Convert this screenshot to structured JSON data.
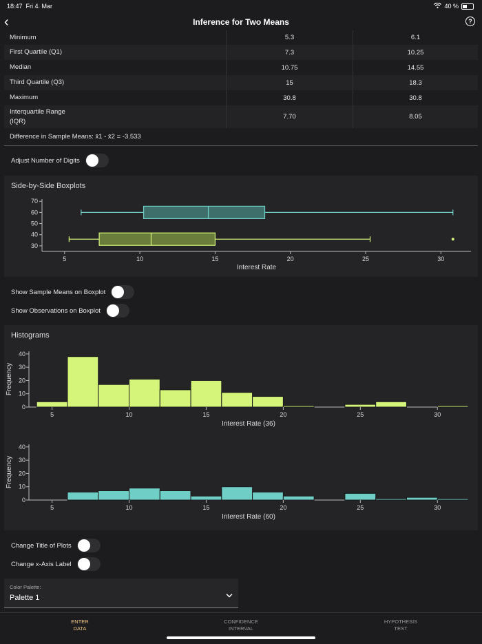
{
  "status": {
    "time": "18:47",
    "date": "Fri 4. Mar",
    "battery": "40 %",
    "battery_level": 0.4
  },
  "nav": {
    "title": "Inference for Two Means"
  },
  "stats": {
    "rows": [
      {
        "label": "Minimum",
        "v1": "5.3",
        "v2": "6.1"
      },
      {
        "label": "First Quartile (Q1)",
        "v1": "7.3",
        "v2": "10.25"
      },
      {
        "label": "Median",
        "v1": "10.75",
        "v2": "14.55"
      },
      {
        "label": "Third Quartile (Q3)",
        "v1": "15",
        "v2": "18.3"
      },
      {
        "label": "Maximum",
        "v1": "30.8",
        "v2": "30.8"
      },
      {
        "label": "Interquartile Range\n(IQR)",
        "v1": "7.70",
        "v2": "8.05"
      }
    ],
    "difference": "Difference in Sample Means: x̄1 - x̄2 = -3.533"
  },
  "toggles": {
    "adjust_digits": "Adjust Number of Digits",
    "show_means": "Show Sample Means on Boxplot",
    "show_obs": "Show Observations on Boxplot",
    "change_title": "Change Title of Plots",
    "change_xaxis": "Change x-Axis Label"
  },
  "boxplot": {
    "title": "Side-by-Side Boxplots"
  },
  "histograms": {
    "title": "Histograms"
  },
  "colors": {
    "green": "#d4f57a",
    "teal": "#6fcfc6",
    "green_box": "#6b7d3a",
    "teal_box": "#3e6f6b"
  },
  "chart_data": [
    {
      "type": "boxplot",
      "title": "",
      "xlabel": "Interest Rate",
      "xlim": [
        3.5,
        32
      ],
      "ylim": [
        25,
        72
      ],
      "x_ticks": [
        5,
        10,
        15,
        20,
        25,
        30
      ],
      "y_ticks": [
        30,
        40,
        50,
        60,
        70
      ],
      "series": [
        {
          "y": 60,
          "min": 6.1,
          "q1": 10.25,
          "median": 14.55,
          "q3": 18.3,
          "max": 30.8,
          "outliers": []
        },
        {
          "y": 36,
          "min": 5.3,
          "q1": 7.3,
          "median": 10.75,
          "q3": 15,
          "max": 25.3,
          "outliers": [
            30.8
          ]
        }
      ]
    },
    {
      "type": "bar",
      "title": "",
      "xlabel": "Interest Rate (36)",
      "ylabel": "Frequency",
      "bin_width": 2,
      "xlim": [
        3.5,
        32
      ],
      "ylim": [
        0,
        42
      ],
      "x_ticks": [
        5,
        10,
        15,
        20,
        25,
        30
      ],
      "y_ticks": [
        0,
        10,
        20,
        30,
        40
      ],
      "bin_starts": [
        4,
        6,
        8,
        10,
        12,
        14,
        16,
        18,
        20,
        22,
        24,
        26,
        28,
        30
      ],
      "values": [
        4,
        38,
        17,
        21,
        13,
        20,
        11,
        8,
        1,
        0,
        2,
        4,
        0,
        1
      ]
    },
    {
      "type": "bar",
      "title": "",
      "xlabel": "Interest Rate (60)",
      "ylabel": "Frequency",
      "bin_width": 2,
      "xlim": [
        3.5,
        32
      ],
      "ylim": [
        0,
        42
      ],
      "x_ticks": [
        5,
        10,
        15,
        20,
        25,
        30
      ],
      "y_ticks": [
        0,
        10,
        20,
        30,
        40
      ],
      "bin_starts": [
        4,
        6,
        8,
        10,
        12,
        14,
        16,
        18,
        20,
        22,
        24,
        26,
        28,
        30
      ],
      "values": [
        0,
        6,
        7,
        9,
        7,
        3,
        10,
        6,
        3,
        0,
        5,
        1,
        2,
        1
      ]
    }
  ],
  "palette": {
    "label": "Color Palette:",
    "value": "Palette 1"
  },
  "tabs": [
    {
      "line1": "ENTER",
      "line2": "DATA"
    },
    {
      "line1": "CONFIDENCE",
      "line2": "INTERVAL"
    },
    {
      "line1": "HYPOTHESIS",
      "line2": "TEST"
    }
  ]
}
